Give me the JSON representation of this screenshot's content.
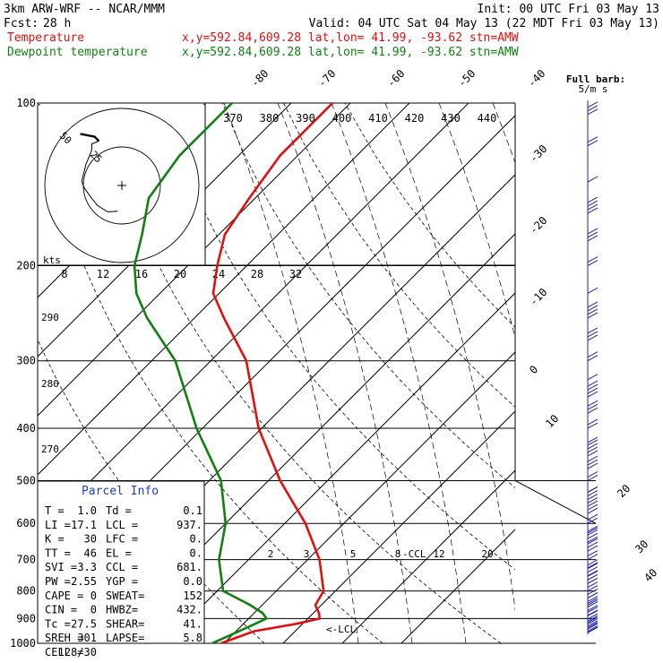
{
  "header": {
    "model": "3km ARW-WRF -- NCAR/MMM",
    "init": "Init: 00 UTC Fri 03 May 13",
    "fcst_label": "Fcst:",
    "fcst_value": "28 h",
    "valid": "Valid: 04 UTC Sat 04 May 13 (22 MDT Fri 03 May 13)",
    "temp_label": "Temperature",
    "dew_label": "Dewpoint temperature",
    "loc_info": "x,y=592.84,609.28    lat,lon= 41.99, -93.62   stn=AMW",
    "barb_title_1": "Full barb:",
    "barb_title_2": "5/m s"
  },
  "colors": {
    "temperature": "#e01010",
    "dewpoint": "#108010",
    "wind": "#2020b0",
    "parcel": "#1a3cc8"
  },
  "chart_data": {
    "type": "line",
    "title": "",
    "y_axis": "pressure_hPa_log",
    "ylim": [
      1000,
      100
    ],
    "pressure_levels": [
      100,
      200,
      300,
      400,
      500,
      600,
      700,
      800,
      900,
      1000
    ],
    "isotherm_labels": [
      "-80",
      "-70",
      "-60",
      "-50",
      "-40",
      "-30",
      "-20",
      "-10",
      "0",
      "10",
      "20",
      "30",
      "40"
    ],
    "theta_labels": [
      "370",
      "380",
      "390",
      "400",
      "410",
      "420",
      "430",
      "440"
    ],
    "hodo_speed_labels": [
      "8",
      "12",
      "16",
      "20",
      "24",
      "28",
      "32"
    ],
    "hodo_units": "kts",
    "hodo_ring_labels": [
      "50",
      "25"
    ],
    "theta_side_labels": [
      "290",
      "280",
      "270"
    ],
    "mixing_ratio_labels": [
      "2",
      "3",
      "5",
      "8",
      "12",
      "20"
    ],
    "ccl_label": "-CCL",
    "lcl_label": "<-LCL",
    "series": [
      {
        "name": "Temperature",
        "points": [
          [
            1000,
            9.5
          ],
          [
            950,
            13
          ],
          [
            920,
            19
          ],
          [
            900,
            22
          ],
          [
            880,
            21
          ],
          [
            850,
            19
          ],
          [
            800,
            18
          ],
          [
            700,
            12
          ],
          [
            600,
            3.5
          ],
          [
            500,
            -8
          ],
          [
            400,
            -20.5
          ],
          [
            300,
            -34
          ],
          [
            250,
            -45
          ],
          [
            225,
            -51
          ],
          [
            200,
            -55
          ],
          [
            175,
            -59
          ],
          [
            150,
            -61
          ],
          [
            125,
            -63
          ],
          [
            110,
            -63
          ],
          [
            100,
            -63
          ]
        ]
      },
      {
        "name": "Dewpoint temperature",
        "points": [
          [
            1000,
            8
          ],
          [
            950,
            10.5
          ],
          [
            920,
            12
          ],
          [
            900,
            13
          ],
          [
            880,
            11.5
          ],
          [
            850,
            8
          ],
          [
            800,
            1
          ],
          [
            700,
            -5
          ],
          [
            600,
            -10
          ],
          [
            500,
            -18
          ],
          [
            400,
            -31
          ],
          [
            300,
            -46
          ],
          [
            250,
            -58
          ],
          [
            225,
            -64
          ],
          [
            200,
            -69
          ],
          [
            175,
            -73
          ],
          [
            150,
            -78
          ],
          [
            125,
            -80
          ],
          [
            110,
            -80
          ],
          [
            100,
            -80
          ]
        ]
      }
    ],
    "hodograph": {
      "u": [
        -1.5,
        -5,
        -8.5,
        -10.5,
        -13,
        -14,
        -12.5,
        -11,
        -10.5,
        -10.5,
        -8,
        -9,
        -9.5,
        -12,
        -14.5
      ],
      "v": [
        -9,
        -9.2,
        -7,
        -4.5,
        -1,
        1.5,
        7.5,
        11,
        12.5,
        14.5,
        15.5,
        16.5,
        17,
        17.5,
        18
      ]
    },
    "wind_barb_pressures": [
      990,
      970,
      950,
      930,
      910,
      890,
      870,
      850,
      825,
      800,
      775,
      750,
      725,
      700,
      675,
      650,
      625,
      600,
      575,
      550,
      525,
      500,
      475,
      450,
      425,
      400,
      375,
      350,
      325,
      300,
      275,
      250,
      225,
      200,
      180,
      160,
      140,
      120,
      105
    ]
  },
  "parcel_info": {
    "title": "Parcel Info",
    "rows": [
      [
        "T  =",
        "1.0",
        "Td =",
        "0.1"
      ],
      [
        "LI =",
        "17.1",
        "LCL =",
        "937."
      ],
      [
        "K  =",
        "30",
        "LFC =",
        "0."
      ],
      [
        "TT =",
        "46",
        "EL  =",
        "0."
      ],
      [
        "SVI =",
        "3.3",
        "CCL =",
        "681."
      ],
      [
        "PW =",
        "2.55",
        "YGP =",
        "0.0"
      ],
      [
        "CAPE =",
        "0",
        "SWEAT=",
        "152"
      ],
      [
        "CIN =",
        "0",
        "HWBZ=",
        "432."
      ],
      [
        "Tc =",
        "27.5",
        "SHEAR=",
        "41."
      ],
      [
        "SREH =",
        "301",
        "LAPSE=",
        "5.8"
      ],
      [
        "CELL =",
        "128/30",
        "",
        ""
      ]
    ]
  }
}
